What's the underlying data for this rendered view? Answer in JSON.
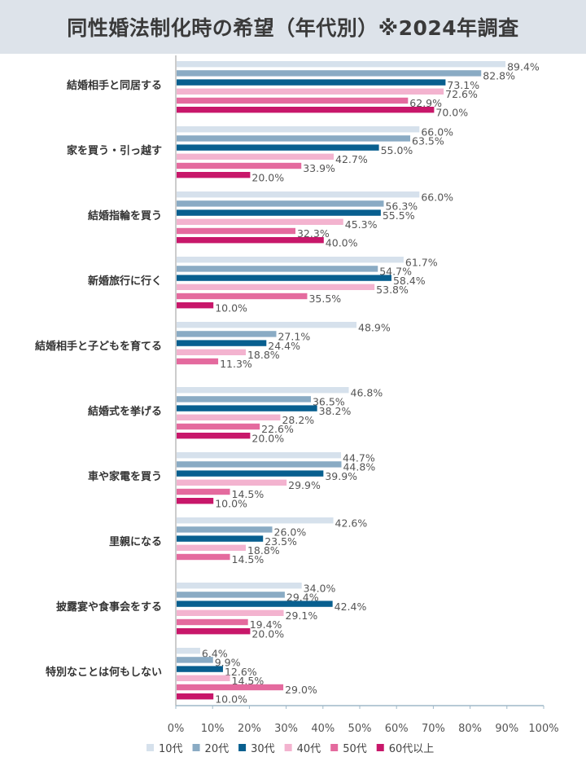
{
  "chart_data": {
    "type": "bar",
    "orientation": "horizontal",
    "title": "同性婚法制化時の希望（年代別）※2024年調査",
    "categories": [
      "結婚相手と同居する",
      "家を買う・引っ越す",
      "結婚指輪を買う",
      "新婚旅行に行く",
      "結婚相手と子どもを育てる",
      "結婚式を挙げる",
      "車や家電を買う",
      "里親になる",
      "披露宴や食事会をする",
      "特別なことは何もしない"
    ],
    "series": [
      {
        "name": "10代",
        "color": "#d6e1ec",
        "values": [
          89.4,
          66.0,
          66.0,
          61.7,
          48.9,
          46.8,
          44.7,
          42.6,
          34.0,
          6.4
        ]
      },
      {
        "name": "20代",
        "color": "#8aabc4",
        "values": [
          82.8,
          63.5,
          56.3,
          54.7,
          27.1,
          36.5,
          44.8,
          26.0,
          29.4,
          9.9
        ]
      },
      {
        "name": "30代",
        "color": "#085f8f",
        "values": [
          73.1,
          55.0,
          55.5,
          58.4,
          24.4,
          38.2,
          39.9,
          23.5,
          42.4,
          12.6
        ]
      },
      {
        "name": "40代",
        "color": "#f3b3cf",
        "values": [
          72.6,
          42.7,
          45.3,
          53.8,
          18.8,
          28.2,
          29.9,
          18.8,
          29.1,
          14.5
        ]
      },
      {
        "name": "50代",
        "color": "#e46a9e",
        "values": [
          62.9,
          33.9,
          32.3,
          35.5,
          11.3,
          22.6,
          14.5,
          14.5,
          19.4,
          29.0
        ]
      },
      {
        "name": "60代以上",
        "color": "#c8176a",
        "values": [
          70.0,
          20.0,
          40.0,
          10.0,
          null,
          20.0,
          10.0,
          null,
          20.0,
          10.0
        ]
      }
    ],
    "value_labels": [
      [
        "89.4%",
        "82.8%",
        "73.1%",
        "72.6%",
        "62.9%",
        "70.0%"
      ],
      [
        "66.0%",
        "63.5%",
        "55.0%",
        "42.7%",
        "33.9%",
        "20.0%"
      ],
      [
        "66.0%",
        "56.3%",
        "55.5%",
        "45.3%",
        "32.3%",
        "40.0%"
      ],
      [
        "61.7%",
        "54.7%",
        "58.4%",
        "53.8%",
        "35.5%",
        "10.0%"
      ],
      [
        "48.9%",
        "27.1%",
        "24.4%",
        "18.8%",
        "11.3%",
        null
      ],
      [
        "46.8%",
        "36.5%",
        "38.2%",
        "28.2%",
        "22.6%",
        "20.0%"
      ],
      [
        "44.7%",
        "44.8%",
        "39.9%",
        "29.9%",
        "14.5%",
        "10.0%"
      ],
      [
        "42.6%",
        "26.0%",
        "23.5%",
        "18.8%",
        "14.5%",
        null
      ],
      [
        "34.0%",
        "29.4%",
        "42.4%",
        "29.1%",
        "19.4%",
        "20.0%"
      ],
      [
        "6.4%",
        "9.9%",
        "12.6%",
        "14.5%",
        "29.0%",
        "10.0%"
      ]
    ],
    "x_ticks": [
      "0%",
      "10%",
      "20%",
      "30%",
      "40%",
      "50%",
      "60%",
      "70%",
      "80%",
      "90%",
      "100%"
    ],
    "xlim": [
      0,
      100
    ],
    "legend_position": "bottom"
  }
}
